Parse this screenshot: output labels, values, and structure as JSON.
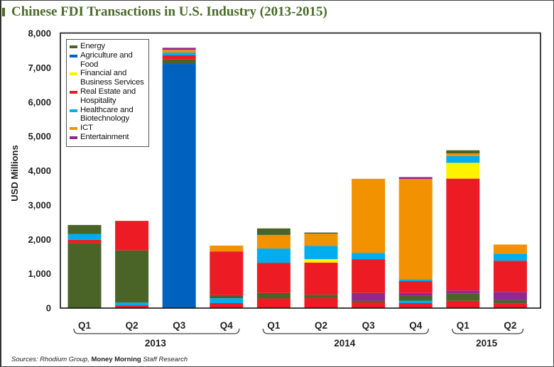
{
  "title": "Chinese FDI Transactions in U.S. Industry (2013-2015)",
  "source": {
    "part1": "Sources: Rhodium Group,",
    "part2": " Money Morning ",
    "part3": "Staff Research"
  },
  "chart_data": {
    "type": "bar",
    "stacked": true,
    "title": "Chinese FDI Transactions in U.S. Industry (2013-2015)",
    "xlabel": "",
    "ylabel": "USD Millions",
    "ylim": [
      0,
      8000
    ],
    "grid": false,
    "legend_position": "top-left",
    "y_ticks": [
      0,
      1000,
      2000,
      3000,
      4000,
      5000,
      6000,
      7000,
      8000
    ],
    "y_tick_labels": [
      "0",
      "1,000",
      "2,000",
      "3,000",
      "4,000",
      "5,000",
      "6,000",
      "7,000",
      "8,000"
    ],
    "legend": [
      {
        "key": "energy",
        "label": "Energy",
        "color": "#4a6428"
      },
      {
        "key": "agriculture",
        "label": "Agriculture and\nFood",
        "color": "#0061be"
      },
      {
        "key": "financial",
        "label": "Financial and\nBusiness Services",
        "color": "#fff200"
      },
      {
        "key": "realestate",
        "label": "Real Estate and\nHospitality",
        "color": "#ed1c24"
      },
      {
        "key": "healthcare",
        "label": "Healthcare and\nBiotechnology",
        "color": "#00aeef"
      },
      {
        "key": "ict",
        "label": "ICT",
        "color": "#f39200"
      },
      {
        "key": "entertainment",
        "label": "Entertainment",
        "color": "#92278f"
      }
    ],
    "years": [
      {
        "label": "2013",
        "first": 0,
        "last": 3
      },
      {
        "label": "2014",
        "first": 4,
        "last": 7
      },
      {
        "label": "2015",
        "first": 8,
        "last": 9
      }
    ],
    "bars": [
      {
        "quarter": "Q1",
        "year": "2013",
        "segments": [
          {
            "cat": "energy",
            "value": 1890
          },
          {
            "cat": "realestate",
            "value": 100
          },
          {
            "cat": "healthcare",
            "value": 170
          },
          {
            "cat": "energy",
            "value": 260
          }
        ]
      },
      {
        "quarter": "Q2",
        "year": "2013",
        "segments": [
          {
            "cat": "realestate",
            "value": 80
          },
          {
            "cat": "healthcare",
            "value": 80
          },
          {
            "cat": "energy",
            "value": 1520
          },
          {
            "cat": "realestate",
            "value": 860
          }
        ]
      },
      {
        "quarter": "Q3",
        "year": "2013",
        "segments": [
          {
            "cat": "agriculture",
            "value": 7110
          },
          {
            "cat": "energy",
            "value": 130
          },
          {
            "cat": "realestate",
            "value": 120
          },
          {
            "cat": "healthcare",
            "value": 80
          },
          {
            "cat": "ict",
            "value": 80
          },
          {
            "cat": "entertainment",
            "value": 60
          }
        ]
      },
      {
        "quarter": "Q4",
        "year": "2013",
        "segments": [
          {
            "cat": "realestate",
            "value": 145
          },
          {
            "cat": "healthcare",
            "value": 140
          },
          {
            "cat": "energy",
            "value": 90
          },
          {
            "cat": "realestate",
            "value": 1275
          },
          {
            "cat": "ict",
            "value": 170
          }
        ]
      },
      {
        "quarter": "Q1",
        "year": "2014",
        "segments": [
          {
            "cat": "realestate",
            "value": 280
          },
          {
            "cat": "energy",
            "value": 160
          },
          {
            "cat": "realestate",
            "value": 880
          },
          {
            "cat": "healthcare",
            "value": 415
          },
          {
            "cat": "ict",
            "value": 395
          },
          {
            "cat": "energy",
            "value": 190
          }
        ]
      },
      {
        "quarter": "Q2",
        "year": "2014",
        "segments": [
          {
            "cat": "realestate",
            "value": 290
          },
          {
            "cat": "energy",
            "value": 100
          },
          {
            "cat": "realestate",
            "value": 935
          },
          {
            "cat": "financial",
            "value": 100
          },
          {
            "cat": "healthcare",
            "value": 385
          },
          {
            "cat": "ict",
            "value": 355
          },
          {
            "cat": "energy",
            "value": 35
          }
        ]
      },
      {
        "quarter": "Q3",
        "year": "2014",
        "segments": [
          {
            "cat": "realestate",
            "value": 165
          },
          {
            "cat": "energy",
            "value": 50
          },
          {
            "cat": "entertainment",
            "value": 225
          },
          {
            "cat": "realestate",
            "value": 985
          },
          {
            "cat": "healthcare",
            "value": 185
          },
          {
            "cat": "ict",
            "value": 2155
          }
        ]
      },
      {
        "quarter": "Q4",
        "year": "2014",
        "segments": [
          {
            "cat": "realestate",
            "value": 145
          },
          {
            "cat": "healthcare",
            "value": 70
          },
          {
            "cat": "energy",
            "value": 145
          },
          {
            "cat": "entertainment",
            "value": 80
          },
          {
            "cat": "realestate",
            "value": 345
          },
          {
            "cat": "healthcare",
            "value": 55
          },
          {
            "cat": "ict",
            "value": 2920
          },
          {
            "cat": "entertainment",
            "value": 55
          }
        ]
      },
      {
        "quarter": "Q1",
        "year": "2015",
        "segments": [
          {
            "cat": "realestate",
            "value": 210
          },
          {
            "cat": "energy",
            "value": 210
          },
          {
            "cat": "entertainment",
            "value": 90
          },
          {
            "cat": "realestate",
            "value": 3260
          },
          {
            "cat": "financial",
            "value": 460
          },
          {
            "cat": "healthcare",
            "value": 195
          },
          {
            "cat": "ict",
            "value": 80
          },
          {
            "cat": "energy",
            "value": 90
          }
        ]
      },
      {
        "quarter": "Q2",
        "year": "2015",
        "segments": [
          {
            "cat": "realestate",
            "value": 130
          },
          {
            "cat": "energy",
            "value": 100
          },
          {
            "cat": "entertainment",
            "value": 240
          },
          {
            "cat": "realestate",
            "value": 910
          },
          {
            "cat": "healthcare",
            "value": 205
          },
          {
            "cat": "ict",
            "value": 265
          }
        ]
      }
    ]
  }
}
